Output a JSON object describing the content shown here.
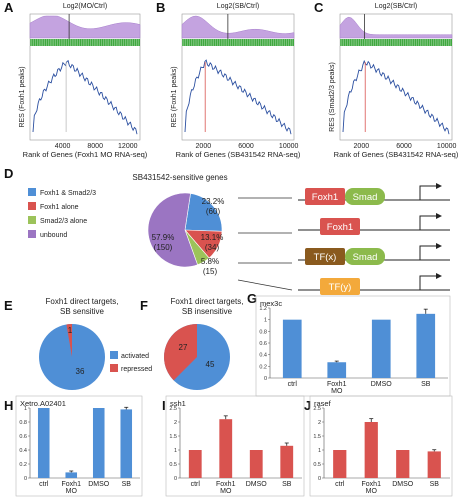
{
  "gsea": [
    {
      "letter": "A",
      "title": "Log2(MO/Ctrl)",
      "ylabel": "RES (Foxh1 peaks)",
      "xlabel": "Rank of Genes (Foxh1 MO RNA-seq)",
      "xticks": [
        "4000",
        "8000",
        "12000"
      ],
      "xtick_vals": [
        4000,
        8000,
        12000
      ],
      "xmax": 13500,
      "ymax_label": "",
      "zero_x": 4800,
      "peak_x": 4300,
      "red": false
    },
    {
      "letter": "B",
      "title": "Log2(SB/Ctrl)",
      "ylabel": "RES (Foxh1 peaks)",
      "xlabel": "Rank of Genes (SB431542 RNA-seq)",
      "xticks": [
        "2000",
        "6000",
        "10000"
      ],
      "xtick_vals": [
        2000,
        6000,
        10000
      ],
      "xmax": 10500,
      "zero_x": 4300,
      "peak_x": 2000,
      "red": true
    },
    {
      "letter": "C",
      "title": "Log2(SB/Ctrl)",
      "ylabel": "RES (Smad2/3 peaks)",
      "xlabel": "Rank of Genes (SB431542 RNA-seq)",
      "xticks": [
        "2000",
        "6000",
        "10000"
      ],
      "xtick_vals": [
        2000,
        6000,
        10000
      ],
      "xmax": 10500,
      "zero_x": 2300,
      "peak_x": 2200,
      "red": true
    }
  ],
  "panelD": {
    "letter": "D",
    "title": "SB431542-sensitive genes",
    "legend": [
      {
        "label": "Foxh1 & Smad2/3",
        "color": "#4f8fd6"
      },
      {
        "label": "Foxh1 alone",
        "color": "#d9534f"
      },
      {
        "label": "Smad2/3 alone",
        "color": "#9cc35a"
      },
      {
        "label": "unbound",
        "color": "#9b75c2"
      }
    ],
    "slices": [
      {
        "pct": "23.2%",
        "count": "(60)",
        "value": 60,
        "color": "#4f8fd6"
      },
      {
        "pct": "13.1%",
        "count": "(34)",
        "value": 34,
        "color": "#d9534f"
      },
      {
        "pct": "5.8%",
        "count": "(15)",
        "value": 15,
        "color": "#9cc35a"
      },
      {
        "pct": "57.9%",
        "count": "(150)",
        "value": 150,
        "color": "#9b75c2"
      }
    ],
    "diagram": [
      {
        "boxes": [
          {
            "label": "Foxh1",
            "color": "#d9534f"
          },
          {
            "label": "Smad",
            "color": "#8cba4c"
          }
        ]
      },
      {
        "boxes": [
          {
            "label": "Foxh1",
            "color": "#d9534f"
          }
        ]
      },
      {
        "boxes": [
          {
            "label": "TF(x)",
            "color": "#8a5a1e"
          },
          {
            "label": "Smad",
            "color": "#8cba4c"
          }
        ]
      },
      {
        "boxes": [
          {
            "label": "TF(y)",
            "color": "#f3a93b"
          }
        ]
      }
    ]
  },
  "panelE": {
    "letter": "E",
    "title_line1": "Foxh1 direct targets,",
    "title_line2": "SB  sensitive",
    "activated": 36,
    "repressed": 1
  },
  "panelF": {
    "letter": "F",
    "title_line1": "Foxh1 direct targets,",
    "title_line2": "SB insensitive",
    "activated": 45,
    "repressed": 27
  },
  "legendEF": [
    {
      "label": "activated",
      "color": "#4f8fd6"
    },
    {
      "label": "repressed",
      "color": "#d9534f"
    }
  ],
  "bar_charts": [
    {
      "letter": "G",
      "gene": "mex3c",
      "categories": [
        "ctrl",
        "Foxh1\nMO",
        "DMSO",
        "SB"
      ],
      "values": [
        1.0,
        0.27,
        1.0,
        1.1
      ],
      "errors": [
        0,
        0.02,
        0,
        0.08
      ],
      "color": "#4f8fd6",
      "ymax": 1.2,
      "yticks": [
        "0",
        "0.2",
        "0.4",
        "0.6",
        "0.8",
        "1",
        "1.2"
      ],
      "ytick_vals": [
        0,
        0.2,
        0.4,
        0.6,
        0.8,
        1,
        1.2
      ]
    },
    {
      "letter": "H",
      "gene": "Xetro.A02401",
      "categories": [
        "ctrl",
        "Foxh1\nMO",
        "DMSO",
        "SB"
      ],
      "values": [
        1.0,
        0.08,
        1.0,
        0.98
      ],
      "errors": [
        0,
        0.02,
        0,
        0.03
      ],
      "color": "#4f8fd6",
      "ymax": 1.0,
      "yticks": [
        "0",
        "0.2",
        "0.4",
        "0.6",
        "0.8",
        "1"
      ],
      "ytick_vals": [
        0,
        0.2,
        0.4,
        0.6,
        0.8,
        1
      ]
    },
    {
      "letter": "I",
      "gene": "ssh1",
      "categories": [
        "ctrl",
        "Foxh1\nMO",
        "DMSO",
        "SB"
      ],
      "values": [
        1.0,
        2.1,
        1.0,
        1.15
      ],
      "errors": [
        0,
        0.12,
        0,
        0.1
      ],
      "color": "#d9534f",
      "ymax": 2.5,
      "yticks": [
        "0",
        "0.5",
        "1",
        "1.5",
        "2",
        "2.5"
      ],
      "ytick_vals": [
        0,
        0.5,
        1,
        1.5,
        2,
        2.5
      ]
    },
    {
      "letter": "J",
      "gene": "rasef",
      "categories": [
        "ctrl",
        "Foxh1\nMO",
        "DMSO",
        "SB"
      ],
      "values": [
        1.0,
        2.0,
        1.0,
        0.95
      ],
      "errors": [
        0,
        0.12,
        0,
        0.06
      ],
      "color": "#d9534f",
      "ymax": 2.5,
      "yticks": [
        "0",
        "0.5",
        "1",
        "1.5",
        "2",
        "2.5"
      ],
      "ytick_vals": [
        0,
        0.5,
        1,
        1.5,
        2,
        2.5
      ]
    }
  ]
}
